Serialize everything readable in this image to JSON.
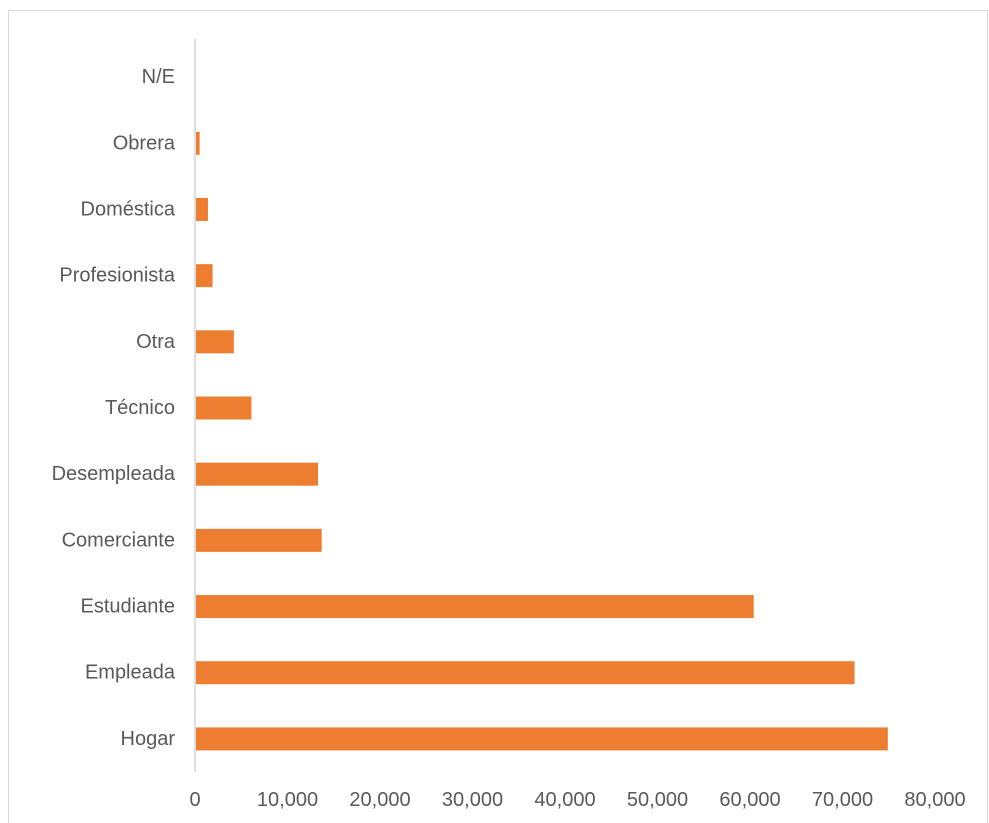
{
  "chart_data": {
    "type": "bar",
    "orientation": "horizontal",
    "title": "",
    "xlabel": "",
    "ylabel": "",
    "categories": [
      "N/E",
      "Obrera",
      "Doméstica",
      "Profesionista",
      "Otra",
      "Técnico",
      "Desempleada",
      "Comerciante",
      "Estudiante",
      "Empleada",
      "Hogar"
    ],
    "values": [
      0,
      500,
      1400,
      1900,
      4200,
      6100,
      13300,
      13700,
      60400,
      71300,
      74900
    ],
    "xlim": [
      0,
      80000
    ],
    "x_ticks": [
      "0",
      "10,000",
      "20,000",
      "30,000",
      "40,000",
      "50,000",
      "60,000",
      "70,000",
      "80,000"
    ],
    "bar_color": "#ED7D31",
    "axis_color": "#BFBFBF",
    "label_color": "#595959",
    "grid": false,
    "legend": "none"
  }
}
